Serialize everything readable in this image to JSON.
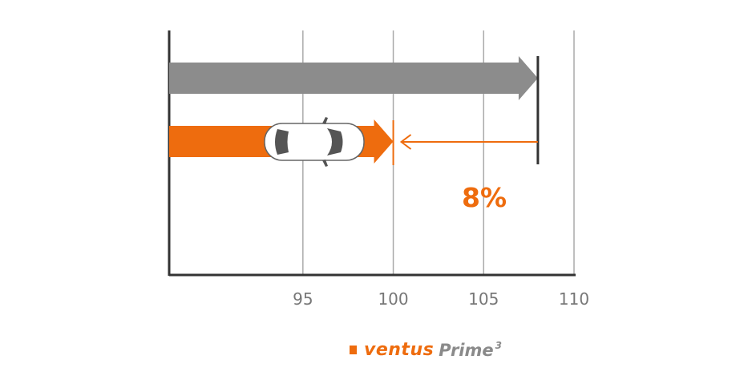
{
  "chart_data": {
    "type": "bar",
    "orientation": "horizontal",
    "x_ticks": [
      95,
      100,
      105,
      110
    ],
    "xlim": [
      87.6,
      110
    ],
    "grid": "vertical",
    "series": [
      {
        "value": 108,
        "color": "#8c8c8c"
      },
      {
        "value": 100,
        "color": "#ee6c0e"
      }
    ],
    "annotation": "8%"
  },
  "logo": {
    "brand": "ventus",
    "model": "Prime",
    "generation": "3",
    "accent": "#ee6c0e"
  }
}
